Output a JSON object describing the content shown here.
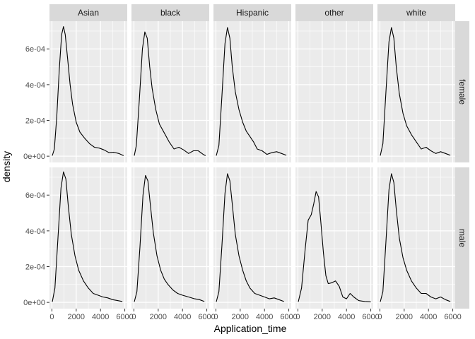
{
  "chart_data": {
    "type": "line",
    "xlabel": "Application_time",
    "ylabel": "density",
    "xlim": [
      -200,
      6200
    ],
    "ylim": [
      -3.5e-05,
      0.000755
    ],
    "x_ticks": [
      0,
      2000,
      4000,
      6000
    ],
    "x_tick_labels": [
      "0",
      "2000",
      "4000",
      "6000"
    ],
    "y_ticks": [
      0,
      0.0002,
      0.0004,
      0.0006
    ],
    "y_tick_labels": [
      "0e+00",
      "2e-04",
      "4e-04",
      "6e-04"
    ],
    "columns": [
      "Asian",
      "black",
      "Hispanic",
      "other",
      "white"
    ],
    "rows": [
      "female",
      "male"
    ],
    "panel_background": "#ebebeb",
    "strip_background": "#d9d9d9",
    "line_color": "#000000",
    "panels": [
      {
        "row": "female",
        "col": "Asian",
        "points": [
          [
            30,
            3e-06
          ],
          [
            200,
            4e-05
          ],
          [
            400,
            0.00022
          ],
          [
            600,
            0.00048
          ],
          [
            800,
            0.00068
          ],
          [
            950,
            0.000725
          ],
          [
            1100,
            0.00068
          ],
          [
            1300,
            0.00054
          ],
          [
            1500,
            0.0004
          ],
          [
            1700,
            0.00029
          ],
          [
            2000,
            0.00019
          ],
          [
            2300,
            0.000135
          ],
          [
            2700,
            0.0001
          ],
          [
            3100,
            7e-05
          ],
          [
            3500,
            5e-05
          ],
          [
            3900,
            4.5e-05
          ],
          [
            4300,
            3.5e-05
          ],
          [
            4700,
            2e-05
          ],
          [
            5100,
            2.2e-05
          ],
          [
            5500,
            1.5e-05
          ],
          [
            5900,
            3e-06
          ]
        ]
      },
      {
        "row": "female",
        "col": "black",
        "points": [
          [
            30,
            3e-06
          ],
          [
            200,
            6e-05
          ],
          [
            450,
            0.00032
          ],
          [
            700,
            0.0006
          ],
          [
            900,
            0.000695
          ],
          [
            1100,
            0.00066
          ],
          [
            1300,
            0.0005
          ],
          [
            1500,
            0.00038
          ],
          [
            1800,
            0.00026
          ],
          [
            2100,
            0.00018
          ],
          [
            2500,
            0.00013
          ],
          [
            2900,
            8e-05
          ],
          [
            3300,
            4e-05
          ],
          [
            3700,
            5e-05
          ],
          [
            4100,
            3.5e-05
          ],
          [
            4500,
            1.5e-05
          ],
          [
            4900,
            3e-05
          ],
          [
            5300,
            3e-05
          ],
          [
            5700,
            1e-05
          ],
          [
            5900,
            3e-06
          ]
        ]
      },
      {
        "row": "female",
        "col": "Hispanic",
        "points": [
          [
            30,
            3e-06
          ],
          [
            250,
            6e-05
          ],
          [
            500,
            0.00034
          ],
          [
            750,
            0.00063
          ],
          [
            950,
            0.00072
          ],
          [
            1150,
            0.00066
          ],
          [
            1350,
            0.0005
          ],
          [
            1600,
            0.00036
          ],
          [
            1900,
            0.00026
          ],
          [
            2200,
            0.00019
          ],
          [
            2500,
            0.00014
          ],
          [
            2800,
            0.00011
          ],
          [
            3100,
            8e-05
          ],
          [
            3400,
            4e-05
          ],
          [
            3800,
            3e-05
          ],
          [
            4200,
            1e-05
          ],
          [
            4600,
            2e-05
          ],
          [
            5000,
            2.5e-05
          ],
          [
            5400,
            1.5e-05
          ],
          [
            5800,
            5e-06
          ]
        ]
      },
      {
        "row": "female",
        "col": "other",
        "points": []
      },
      {
        "row": "female",
        "col": "white",
        "points": [
          [
            30,
            3e-06
          ],
          [
            250,
            7e-05
          ],
          [
            500,
            0.00036
          ],
          [
            750,
            0.00064
          ],
          [
            950,
            0.00072
          ],
          [
            1150,
            0.00066
          ],
          [
            1350,
            0.0005
          ],
          [
            1600,
            0.00035
          ],
          [
            1900,
            0.00024
          ],
          [
            2200,
            0.00017
          ],
          [
            2600,
            0.00012
          ],
          [
            3000,
            8e-05
          ],
          [
            3400,
            4e-05
          ],
          [
            3800,
            5e-05
          ],
          [
            4200,
            3e-05
          ],
          [
            4600,
            1.5e-05
          ],
          [
            5000,
            2.5e-05
          ],
          [
            5400,
            1.5e-05
          ],
          [
            5800,
            5e-06
          ]
        ]
      },
      {
        "row": "male",
        "col": "Asian",
        "points": [
          [
            30,
            3e-06
          ],
          [
            250,
            8e-05
          ],
          [
            500,
            0.00036
          ],
          [
            750,
            0.00064
          ],
          [
            950,
            0.00073
          ],
          [
            1150,
            0.00069
          ],
          [
            1350,
            0.00054
          ],
          [
            1600,
            0.00038
          ],
          [
            1900,
            0.00026
          ],
          [
            2200,
            0.00018
          ],
          [
            2600,
            0.00012
          ],
          [
            3000,
            8e-05
          ],
          [
            3400,
            5e-05
          ],
          [
            3800,
            4e-05
          ],
          [
            4200,
            3e-05
          ],
          [
            4600,
            2.5e-05
          ],
          [
            5000,
            1.5e-05
          ],
          [
            5400,
            1e-05
          ],
          [
            5800,
            5e-06
          ]
        ]
      },
      {
        "row": "male",
        "col": "black",
        "points": [
          [
            30,
            3e-06
          ],
          [
            250,
            6e-05
          ],
          [
            500,
            0.00031
          ],
          [
            750,
            0.0006
          ],
          [
            950,
            0.00071
          ],
          [
            1150,
            0.00068
          ],
          [
            1350,
            0.00055
          ],
          [
            1600,
            0.00039
          ],
          [
            1900,
            0.00026
          ],
          [
            2200,
            0.00018
          ],
          [
            2500,
            0.00013
          ],
          [
            2800,
            0.0001
          ],
          [
            3200,
            7e-05
          ],
          [
            3600,
            5e-05
          ],
          [
            4000,
            4e-05
          ],
          [
            4500,
            3e-05
          ],
          [
            5000,
            2e-05
          ],
          [
            5400,
            1.5e-05
          ],
          [
            5800,
            5e-06
          ]
        ]
      },
      {
        "row": "male",
        "col": "Hispanic",
        "points": [
          [
            30,
            3e-06
          ],
          [
            250,
            6e-05
          ],
          [
            500,
            0.00032
          ],
          [
            750,
            0.00061
          ],
          [
            950,
            0.00072
          ],
          [
            1150,
            0.00068
          ],
          [
            1350,
            0.00055
          ],
          [
            1600,
            0.00038
          ],
          [
            1900,
            0.00026
          ],
          [
            2200,
            0.00018
          ],
          [
            2500,
            0.00012
          ],
          [
            2800,
            8e-05
          ],
          [
            3200,
            5e-05
          ],
          [
            3600,
            4e-05
          ],
          [
            4000,
            3e-05
          ],
          [
            4400,
            2e-05
          ],
          [
            4800,
            2.5e-05
          ],
          [
            5200,
            1.5e-05
          ],
          [
            5600,
            5e-06
          ]
        ]
      },
      {
        "row": "male",
        "col": "other",
        "points": [
          [
            30,
            3e-06
          ],
          [
            300,
            8e-05
          ],
          [
            600,
            0.0003
          ],
          [
            850,
            0.00046
          ],
          [
            1100,
            0.00049
          ],
          [
            1300,
            0.00055
          ],
          [
            1500,
            0.00062
          ],
          [
            1700,
            0.00059
          ],
          [
            1900,
            0.00044
          ],
          [
            2100,
            0.00028
          ],
          [
            2300,
            0.00015
          ],
          [
            2500,
            0.000105
          ],
          [
            2800,
            0.00011
          ],
          [
            3100,
            0.00012
          ],
          [
            3400,
            9e-05
          ],
          [
            3700,
            3e-05
          ],
          [
            4000,
            2e-05
          ],
          [
            4300,
            5e-05
          ],
          [
            4600,
            3e-05
          ],
          [
            5000,
            1e-05
          ],
          [
            5500,
            5e-06
          ],
          [
            6000,
            3e-06
          ]
        ]
      },
      {
        "row": "male",
        "col": "white",
        "points": [
          [
            30,
            3e-06
          ],
          [
            250,
            6e-05
          ],
          [
            500,
            0.00034
          ],
          [
            750,
            0.00063
          ],
          [
            950,
            0.00072
          ],
          [
            1150,
            0.00067
          ],
          [
            1350,
            0.00052
          ],
          [
            1600,
            0.00036
          ],
          [
            1900,
            0.00025
          ],
          [
            2200,
            0.00018
          ],
          [
            2600,
            0.00012
          ],
          [
            3000,
            8e-05
          ],
          [
            3400,
            5e-05
          ],
          [
            3800,
            5e-05
          ],
          [
            4200,
            3e-05
          ],
          [
            4600,
            2e-05
          ],
          [
            5000,
            3e-05
          ],
          [
            5400,
            1.5e-05
          ],
          [
            5800,
            5e-06
          ]
        ]
      }
    ]
  }
}
